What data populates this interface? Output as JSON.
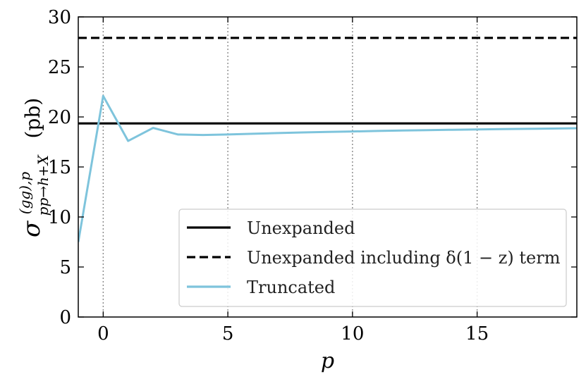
{
  "chart_data": {
    "type": "line",
    "xlabel": "p",
    "ylabel": "σ",
    "ylabel_sup": "(gg),p",
    "ylabel_sub": "pp→h+X",
    "ylabel_unit": "(pb)",
    "xlim": [
      -1,
      19
    ],
    "ylim": [
      0,
      30
    ],
    "xticks": [
      0,
      5,
      10,
      15
    ],
    "yticks": [
      0,
      5,
      10,
      15,
      20,
      25,
      30
    ],
    "xtick_labels": [
      "0",
      "5",
      "10",
      "15"
    ],
    "ytick_labels": [
      "0",
      "5",
      "10",
      "15",
      "20",
      "25",
      "30"
    ],
    "vgrid_at": [
      0,
      5,
      10,
      15
    ],
    "legend_position": "lower-right",
    "series": [
      {
        "name": "Unexpanded",
        "style": "solid",
        "color": "#000000",
        "x": [
          -1,
          19
        ],
        "y": [
          19.35,
          19.35
        ]
      },
      {
        "name": "Unexpanded including δ(1 − z) term",
        "style": "dashed",
        "color": "#000000",
        "x": [
          -1,
          19
        ],
        "y": [
          27.9,
          27.9
        ]
      },
      {
        "name": "Truncated",
        "style": "solid",
        "color": "#7ec4dc",
        "x": [
          -1,
          0,
          1,
          2,
          3,
          4,
          5,
          6,
          7,
          8,
          9,
          10,
          11,
          12,
          13,
          14,
          15,
          16,
          17,
          18,
          19
        ],
        "y": [
          7.5,
          22.1,
          17.6,
          18.9,
          18.25,
          18.2,
          18.25,
          18.32,
          18.39,
          18.45,
          18.5,
          18.55,
          18.6,
          18.64,
          18.68,
          18.72,
          18.75,
          18.78,
          18.81,
          18.84,
          18.87
        ]
      }
    ]
  }
}
